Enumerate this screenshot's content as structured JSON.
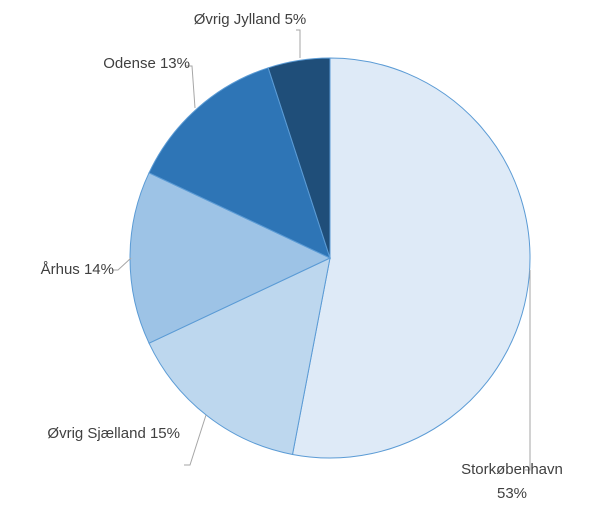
{
  "chart_data": {
    "type": "pie",
    "categories": [
      "Storkøbenhavn",
      "Øvrig Sjælland",
      "Århus",
      "Odense",
      "Øvrig Jylland"
    ],
    "values": [
      53,
      15,
      14,
      13,
      5
    ],
    "value_labels": [
      "53%",
      "15%",
      "14%",
      "13%",
      "5%"
    ],
    "colors": [
      "#deeaf7",
      "#bdd7ee",
      "#9dc3e6",
      "#2e75b6",
      "#1f4e79"
    ]
  }
}
